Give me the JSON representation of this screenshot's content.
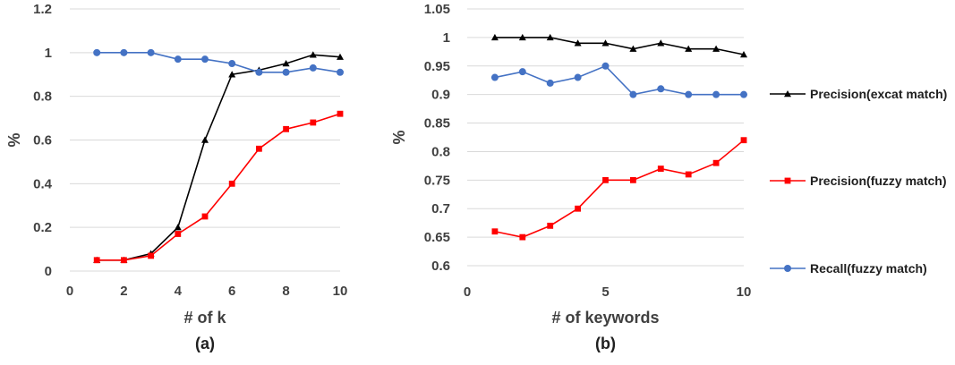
{
  "chart_data": [
    {
      "type": "line",
      "caption": "(a)",
      "xlabel": "# of k",
      "ylabel": "%",
      "xlim": [
        0,
        10
      ],
      "ylim": [
        0,
        1.2
      ],
      "xticks": [
        0,
        2,
        4,
        6,
        8,
        10
      ],
      "yticks": [
        0,
        0.2,
        0.4,
        0.6,
        0.8,
        1,
        1.2
      ],
      "yticklabels": [
        "0",
        "0.2",
        "0.4",
        "0.6",
        "0.8",
        "1",
        "1.2"
      ],
      "grid": true,
      "series": [
        {
          "key": "precision_exact",
          "color": "#000000",
          "marker": "triangle",
          "x": [
            1,
            2,
            3,
            4,
            5,
            6,
            7,
            8,
            9,
            10
          ],
          "values": [
            0.05,
            0.05,
            0.08,
            0.2,
            0.6,
            0.9,
            0.92,
            0.95,
            0.99,
            0.98
          ]
        },
        {
          "key": "precision_fuzzy",
          "color": "#ff0000",
          "marker": "square",
          "x": [
            1,
            2,
            3,
            4,
            5,
            6,
            7,
            8,
            9,
            10
          ],
          "values": [
            0.05,
            0.05,
            0.07,
            0.17,
            0.25,
            0.4,
            0.56,
            0.65,
            0.68,
            0.72
          ]
        },
        {
          "key": "recall_fuzzy",
          "color": "#4472c4",
          "marker": "circle",
          "x": [
            1,
            2,
            3,
            4,
            5,
            6,
            7,
            8,
            9,
            10
          ],
          "values": [
            1.0,
            1.0,
            1.0,
            0.97,
            0.97,
            0.95,
            0.91,
            0.91,
            0.93,
            0.91
          ]
        }
      ]
    },
    {
      "type": "line",
      "caption": "(b)",
      "xlabel": "# of keywords",
      "ylabel": "%",
      "xlim": [
        0,
        10
      ],
      "ylim": [
        0.6,
        1.05
      ],
      "xticks": [
        0,
        5,
        10
      ],
      "yticks": [
        0.6,
        0.65,
        0.7,
        0.75,
        0.8,
        0.85,
        0.9,
        0.95,
        1,
        1.05
      ],
      "yticklabels": [
        "0.6",
        "0.65",
        "0.7",
        "0.75",
        "0.8",
        "0.85",
        "0.9",
        "0.95",
        "1",
        "1.05"
      ],
      "grid": true,
      "legend": "right",
      "series": [
        {
          "key": "precision_exact",
          "name": "Precision(excat match)",
          "color": "#000000",
          "marker": "triangle",
          "x": [
            1,
            2,
            3,
            4,
            5,
            6,
            7,
            8,
            9,
            10
          ],
          "values": [
            1.0,
            1.0,
            1.0,
            0.99,
            0.99,
            0.98,
            0.99,
            0.98,
            0.98,
            0.97
          ]
        },
        {
          "key": "precision_fuzzy",
          "name": "Precision(fuzzy match)",
          "color": "#ff0000",
          "marker": "square",
          "x": [
            1,
            2,
            3,
            4,
            5,
            6,
            7,
            8,
            9,
            10
          ],
          "values": [
            0.66,
            0.65,
            0.67,
            0.7,
            0.75,
            0.75,
            0.77,
            0.76,
            0.78,
            0.82
          ]
        },
        {
          "key": "recall_fuzzy",
          "name": "Recall(fuzzy match)",
          "color": "#4472c4",
          "marker": "circle",
          "x": [
            1,
            2,
            3,
            4,
            5,
            6,
            7,
            8,
            9,
            10
          ],
          "values": [
            0.93,
            0.94,
            0.92,
            0.93,
            0.95,
            0.9,
            0.91,
            0.9,
            0.9,
            0.9
          ]
        }
      ]
    }
  ]
}
